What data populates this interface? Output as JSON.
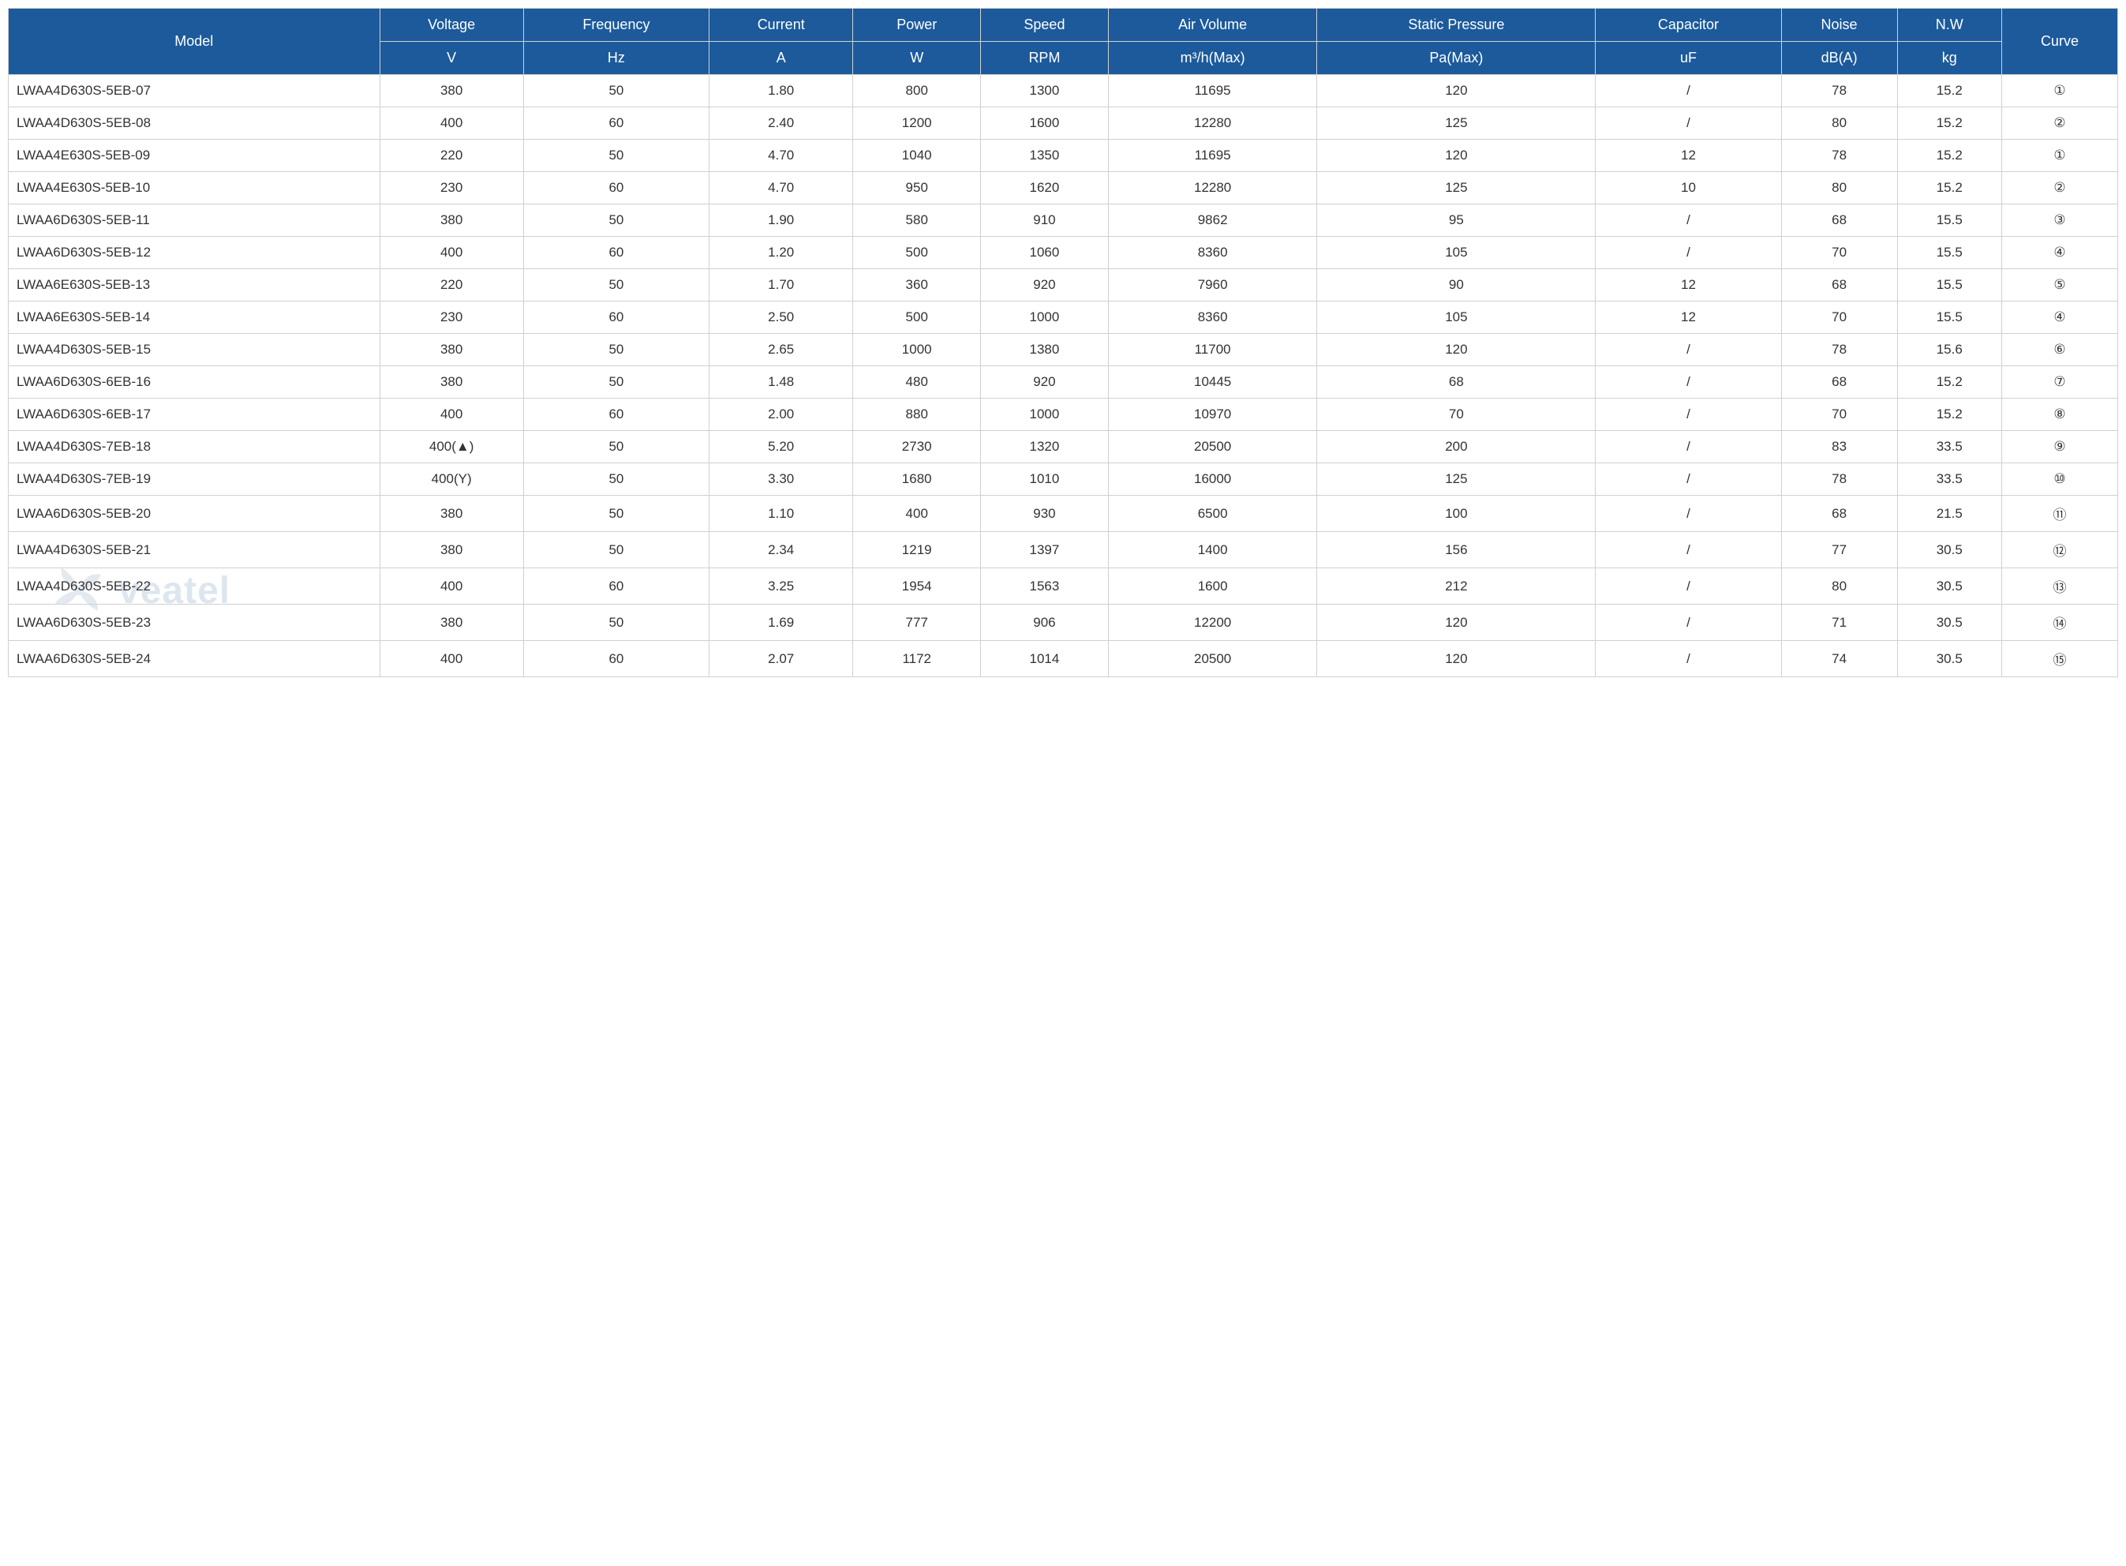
{
  "table": {
    "header_bg": "#1c5a9c",
    "header_color": "#ffffff",
    "border_color": "#d0d0d0",
    "text_color": "#333333",
    "header_row1": {
      "model": "Model",
      "voltage": "Voltage",
      "frequency": "Frequency",
      "current": "Current",
      "power": "Power",
      "speed": "Speed",
      "air_volume": "Air Volume",
      "static_pressure": "Static Pressure",
      "capacitor": "Capacitor",
      "noise": "Noise",
      "nw": "N.W",
      "curve": "Curve"
    },
    "header_row2": {
      "voltage": "V",
      "frequency": "Hz",
      "current": "A",
      "power": "W",
      "speed": "RPM",
      "air_volume": "m³/h(Max)",
      "static_pressure": "Pa(Max)",
      "capacitor": "uF",
      "noise": "dB(A)",
      "nw": "kg"
    },
    "rows": [
      {
        "model": "LWAA4D630S-5EB-07",
        "voltage": "380",
        "frequency": "50",
        "current": "1.80",
        "power": "800",
        "speed": "1300",
        "air_volume": "11695",
        "static_pressure": "120",
        "capacitor": "/",
        "noise": "78",
        "nw": "15.2",
        "curve": "①"
      },
      {
        "model": "LWAA4D630S-5EB-08",
        "voltage": "400",
        "frequency": "60",
        "current": "2.40",
        "power": "1200",
        "speed": "1600",
        "air_volume": "12280",
        "static_pressure": "125",
        "capacitor": "/",
        "noise": "80",
        "nw": "15.2",
        "curve": "②"
      },
      {
        "model": "LWAA4E630S-5EB-09",
        "voltage": "220",
        "frequency": "50",
        "current": "4.70",
        "power": "1040",
        "speed": "1350",
        "air_volume": "11695",
        "static_pressure": "120",
        "capacitor": "12",
        "noise": "78",
        "nw": "15.2",
        "curve": "①"
      },
      {
        "model": "LWAA4E630S-5EB-10",
        "voltage": "230",
        "frequency": "60",
        "current": "4.70",
        "power": "950",
        "speed": "1620",
        "air_volume": "12280",
        "static_pressure": "125",
        "capacitor": "10",
        "noise": "80",
        "nw": "15.2",
        "curve": "②"
      },
      {
        "model": "LWAA6D630S-5EB-11",
        "voltage": "380",
        "frequency": "50",
        "current": "1.90",
        "power": "580",
        "speed": "910",
        "air_volume": "9862",
        "static_pressure": "95",
        "capacitor": "/",
        "noise": "68",
        "nw": "15.5",
        "curve": "③"
      },
      {
        "model": "LWAA6D630S-5EB-12",
        "voltage": "400",
        "frequency": "60",
        "current": "1.20",
        "power": "500",
        "speed": "1060",
        "air_volume": "8360",
        "static_pressure": "105",
        "capacitor": "/",
        "noise": "70",
        "nw": "15.5",
        "curve": "④"
      },
      {
        "model": "LWAA6E630S-5EB-13",
        "voltage": "220",
        "frequency": "50",
        "current": "1.70",
        "power": "360",
        "speed": "920",
        "air_volume": "7960",
        "static_pressure": "90",
        "capacitor": "12",
        "noise": "68",
        "nw": "15.5",
        "curve": "⑤"
      },
      {
        "model": "LWAA6E630S-5EB-14",
        "voltage": "230",
        "frequency": "60",
        "current": "2.50",
        "power": "500",
        "speed": "1000",
        "air_volume": "8360",
        "static_pressure": "105",
        "capacitor": "12",
        "noise": "70",
        "nw": "15.5",
        "curve": "④"
      },
      {
        "model": "LWAA4D630S-5EB-15",
        "voltage": "380",
        "frequency": "50",
        "current": "2.65",
        "power": "1000",
        "speed": "1380",
        "air_volume": "11700",
        "static_pressure": "120",
        "capacitor": "/",
        "noise": "78",
        "nw": "15.6",
        "curve": "⑥"
      },
      {
        "model": "LWAA6D630S-6EB-16",
        "voltage": "380",
        "frequency": "50",
        "current": "1.48",
        "power": "480",
        "speed": "920",
        "air_volume": "10445",
        "static_pressure": "68",
        "capacitor": "/",
        "noise": "68",
        "nw": "15.2",
        "curve": "⑦"
      },
      {
        "model": "LWAA6D630S-6EB-17",
        "voltage": "400",
        "frequency": "60",
        "current": "2.00",
        "power": "880",
        "speed": "1000",
        "air_volume": "10970",
        "static_pressure": "70",
        "capacitor": "/",
        "noise": "70",
        "nw": "15.2",
        "curve": "⑧"
      },
      {
        "model": "LWAA4D630S-7EB-18",
        "voltage": "400(▲)",
        "frequency": "50",
        "current": "5.20",
        "power": "2730",
        "speed": "1320",
        "air_volume": "20500",
        "static_pressure": "200",
        "capacitor": "/",
        "noise": "83",
        "nw": "33.5",
        "curve": "⑨"
      },
      {
        "model": "LWAA4D630S-7EB-19",
        "voltage": "400(Y)",
        "frequency": "50",
        "current": "3.30",
        "power": "1680",
        "speed": "1010",
        "air_volume": "16000",
        "static_pressure": "125",
        "capacitor": "/",
        "noise": "78",
        "nw": "33.5",
        "curve": "⑩"
      },
      {
        "model": "LWAA6D630S-5EB-20",
        "voltage": "380",
        "frequency": "50",
        "current": "1.10",
        "power": "400",
        "speed": "930",
        "air_volume": "6500",
        "static_pressure": "100",
        "capacitor": "/",
        "noise": "68",
        "nw": "21.5",
        "curve": "⑪"
      },
      {
        "model": "LWAA4D630S-5EB-21",
        "voltage": "380",
        "frequency": "50",
        "current": "2.34",
        "power": "1219",
        "speed": "1397",
        "air_volume": "1400",
        "static_pressure": "156",
        "capacitor": "/",
        "noise": "77",
        "nw": "30.5",
        "curve": "⑫"
      },
      {
        "model": "LWAA4D630S-5EB-22",
        "voltage": "400",
        "frequency": "60",
        "current": "3.25",
        "power": "1954",
        "speed": "1563",
        "air_volume": "1600",
        "static_pressure": "212",
        "capacitor": "/",
        "noise": "80",
        "nw": "30.5",
        "curve": "⑬"
      },
      {
        "model": "LWAA6D630S-5EB-23",
        "voltage": "380",
        "frequency": "50",
        "current": "1.69",
        "power": "777",
        "speed": "906",
        "air_volume": "12200",
        "static_pressure": "120",
        "capacitor": "/",
        "noise": "71",
        "nw": "30.5",
        "curve": "⑭"
      },
      {
        "model": "LWAA6D630S-5EB-24",
        "voltage": "400",
        "frequency": "60",
        "current": "2.07",
        "power": "1172",
        "speed": "1014",
        "air_volume": "20500",
        "static_pressure": "120",
        "capacitor": "/",
        "noise": "74",
        "nw": "30.5",
        "curve": "⑮"
      }
    ]
  },
  "watermark": {
    "text": "veatel",
    "icon_color": "#6b8aa8"
  }
}
